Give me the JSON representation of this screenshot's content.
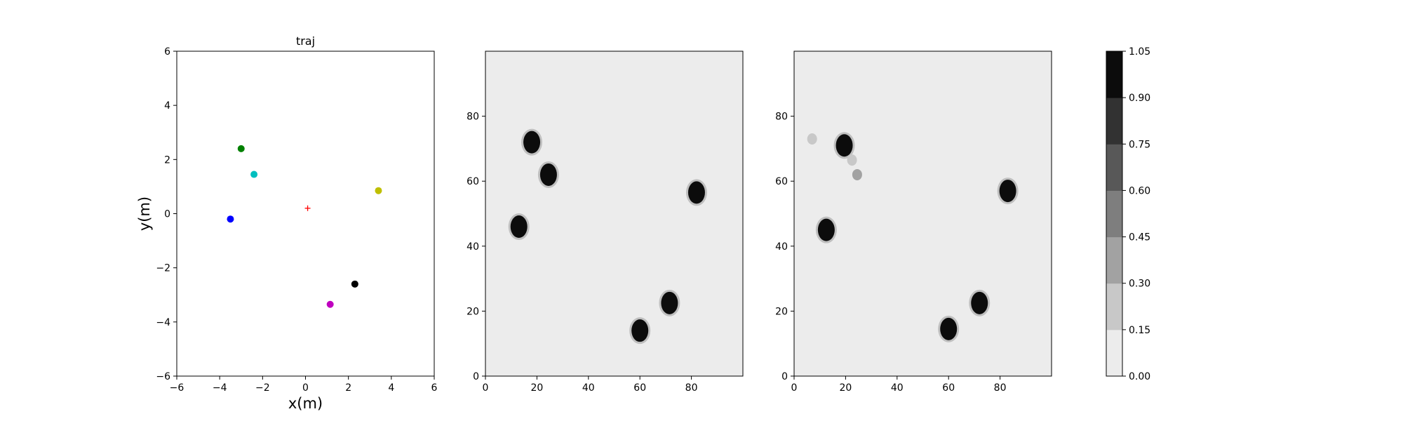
{
  "chart_data": [
    {
      "type": "scatter",
      "title": "traj",
      "xlabel": "x(m)",
      "ylabel": "y(m)",
      "xlim": [
        -6,
        6
      ],
      "ylim": [
        -6,
        6
      ],
      "xticks": [
        -6,
        -4,
        -2,
        0,
        2,
        4,
        6
      ],
      "yticks": [
        -6,
        -4,
        -2,
        0,
        2,
        4,
        6
      ],
      "tick_labels": [
        "−6",
        "−4",
        "−2",
        "0",
        "2",
        "4",
        "6"
      ],
      "grid": false,
      "points": [
        {
          "x": -3.5,
          "y": -0.2,
          "color": "#0000ff",
          "marker": "circle"
        },
        {
          "x": -3.0,
          "y": 2.4,
          "color": "#008000",
          "marker": "circle"
        },
        {
          "x": -2.4,
          "y": 1.45,
          "color": "#00bfbf",
          "marker": "circle"
        },
        {
          "x": 3.4,
          "y": 0.85,
          "color": "#bfbf00",
          "marker": "circle"
        },
        {
          "x": 2.3,
          "y": -2.6,
          "color": "#000000",
          "marker": "circle"
        },
        {
          "x": 1.15,
          "y": -3.35,
          "color": "#bf00bf",
          "marker": "circle"
        },
        {
          "x": 0.1,
          "y": 0.2,
          "color": "#ff0000",
          "marker": "plus"
        }
      ]
    },
    {
      "type": "heatmap",
      "xlim": [
        0,
        100
      ],
      "ylim": [
        0,
        100
      ],
      "xticks": [
        0,
        20,
        40,
        60,
        80
      ],
      "yticks": [
        0,
        20,
        40,
        60,
        80
      ],
      "tick_labels": [
        "0",
        "20",
        "40",
        "60",
        "80"
      ],
      "background_value": 0.05,
      "blobs": [
        {
          "x": 18,
          "y": 72,
          "value": 1.0
        },
        {
          "x": 24.5,
          "y": 62,
          "value": 1.0
        },
        {
          "x": 13,
          "y": 46,
          "value": 1.0
        },
        {
          "x": 82,
          "y": 56.5,
          "value": 1.0
        },
        {
          "x": 71.5,
          "y": 22.5,
          "value": 1.0
        },
        {
          "x": 60,
          "y": 14,
          "value": 1.0
        }
      ]
    },
    {
      "type": "heatmap",
      "xlim": [
        0,
        100
      ],
      "ylim": [
        0,
        100
      ],
      "xticks": [
        0,
        20,
        40,
        60,
        80
      ],
      "yticks": [
        0,
        20,
        40,
        60,
        80
      ],
      "tick_labels": [
        "0",
        "20",
        "40",
        "60",
        "80"
      ],
      "background_value": 0.05,
      "blobs": [
        {
          "x": 19.5,
          "y": 71,
          "value": 1.0
        },
        {
          "x": 12.5,
          "y": 45,
          "value": 1.0
        },
        {
          "x": 83,
          "y": 57,
          "value": 1.0
        },
        {
          "x": 72,
          "y": 22.5,
          "value": 1.0
        },
        {
          "x": 60,
          "y": 14.5,
          "value": 1.0
        },
        {
          "x": 7,
          "y": 73,
          "value": 0.25
        },
        {
          "x": 24.5,
          "y": 62,
          "value": 0.3
        },
        {
          "x": 22.5,
          "y": 66.5,
          "value": 0.2
        }
      ]
    }
  ],
  "colorbar": {
    "levels": [
      0.0,
      0.15,
      0.3,
      0.45,
      0.6,
      0.75,
      0.9,
      1.05
    ],
    "tick_labels": [
      "0.00",
      "0.15",
      "0.30",
      "0.45",
      "0.60",
      "0.75",
      "0.90",
      "1.05"
    ],
    "colors": [
      "#ececec",
      "#c8c8c8",
      "#a2a2a2",
      "#7e7e7e",
      "#585858",
      "#323232",
      "#0c0c0c"
    ]
  }
}
